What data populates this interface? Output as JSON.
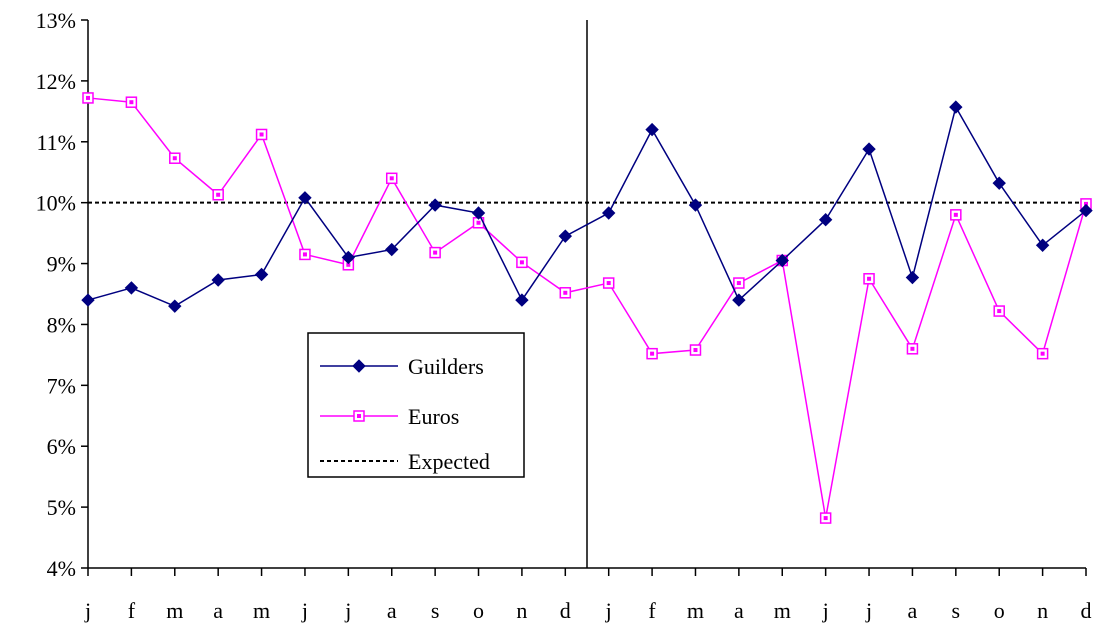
{
  "chart_data": {
    "type": "line",
    "categories": [
      "j",
      "f",
      "m",
      "a",
      "m",
      "j",
      "j",
      "a",
      "s",
      "o",
      "n",
      "d",
      "j",
      "f",
      "m",
      "a",
      "m",
      "j",
      "j",
      "a",
      "s",
      "o",
      "n",
      "d"
    ],
    "ylim": [
      4,
      13
    ],
    "y_ticks": [
      "4%",
      "5%",
      "6%",
      "7%",
      "8%",
      "9%",
      "10%",
      "11%",
      "12%",
      "13%"
    ],
    "divider_after_index": 11,
    "grid": false,
    "legend_position": "center-left",
    "series": [
      {
        "name": "Guilders",
        "color": "#000080",
        "marker": "diamond",
        "values": [
          8.4,
          8.6,
          8.3,
          8.73,
          8.82,
          10.08,
          9.1,
          9.23,
          9.96,
          9.83,
          8.4,
          9.45,
          9.83,
          11.2,
          9.96,
          8.4,
          9.05,
          9.72,
          10.88,
          8.77,
          11.57,
          10.32,
          9.3,
          9.87
        ]
      },
      {
        "name": "Euros",
        "color": "#ff00ff",
        "marker": "square",
        "values": [
          11.72,
          11.65,
          10.73,
          10.13,
          11.12,
          9.15,
          8.98,
          10.4,
          9.18,
          9.67,
          9.02,
          8.52,
          8.68,
          7.52,
          7.58,
          8.68,
          9.05,
          4.82,
          8.75,
          7.6,
          9.8,
          8.22,
          7.52,
          9.98
        ]
      },
      {
        "name": "Expected",
        "color": "#000000",
        "style": "dotted",
        "values": [
          10,
          10,
          10,
          10,
          10,
          10,
          10,
          10,
          10,
          10,
          10,
          10,
          10,
          10,
          10,
          10,
          10,
          10,
          10,
          10,
          10,
          10,
          10,
          10
        ]
      }
    ]
  }
}
